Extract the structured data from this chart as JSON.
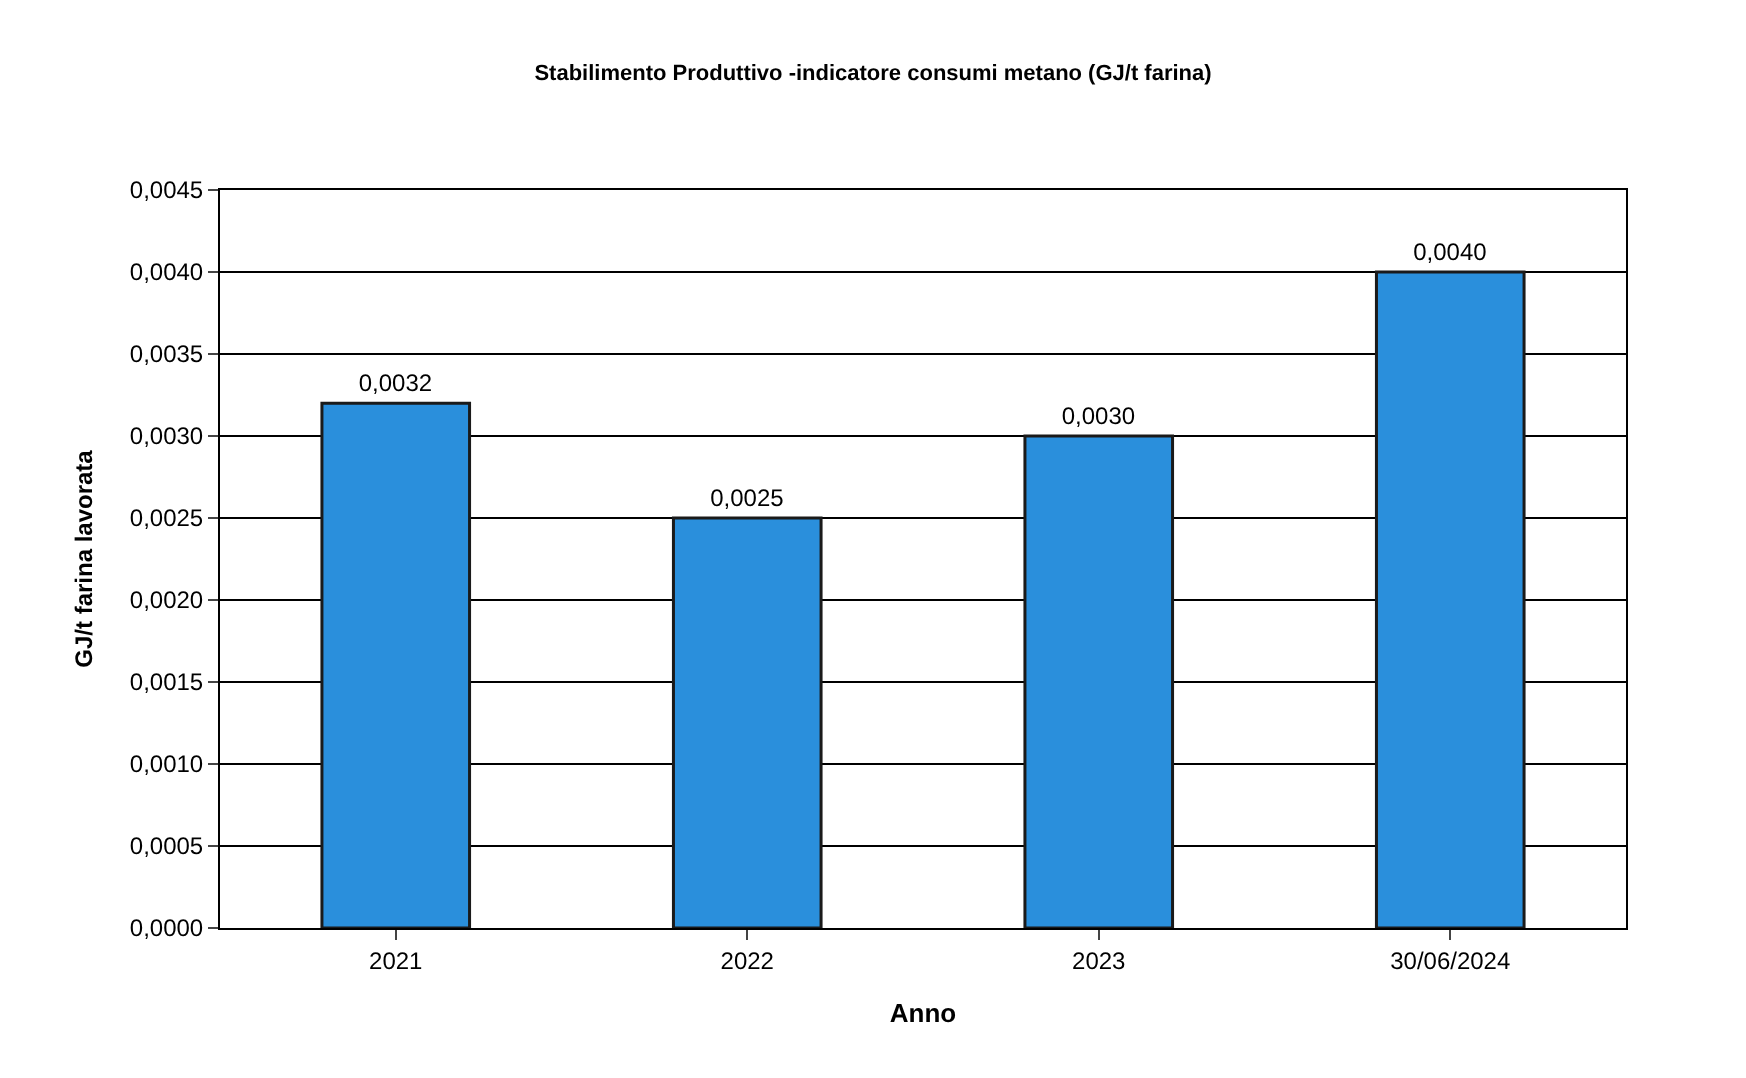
{
  "chart_data": {
    "type": "bar",
    "title": "Stabilimento Produttivo -indicatore consumi metano (GJ/t farina)",
    "xlabel": "Anno",
    "ylabel": "GJ/t farina lavorata",
    "categories": [
      "2021",
      "2022",
      "2023",
      "30/06/2024"
    ],
    "values": [
      0.0032,
      0.0025,
      0.003,
      0.004
    ],
    "value_labels": [
      "0,0032",
      "0,0025",
      "0,0030",
      "0,0040"
    ],
    "color": "#2a8fdc",
    "ylim": [
      0,
      0.0045
    ],
    "yticks": [
      {
        "value": 0,
        "label": "0,0000"
      },
      {
        "value": 0.0005,
        "label": "0,0005"
      },
      {
        "value": 0.001,
        "label": "0,0010"
      },
      {
        "value": 0.0015,
        "label": "0,0015"
      },
      {
        "value": 0.002,
        "label": "0,0020"
      },
      {
        "value": 0.0025,
        "label": "0,0025"
      },
      {
        "value": 0.003,
        "label": "0,0030"
      },
      {
        "value": 0.0035,
        "label": "0,0035"
      },
      {
        "value": 0.004,
        "label": "0,0040"
      },
      {
        "value": 0.0045,
        "label": "0,0045"
      }
    ],
    "grid": "y"
  }
}
